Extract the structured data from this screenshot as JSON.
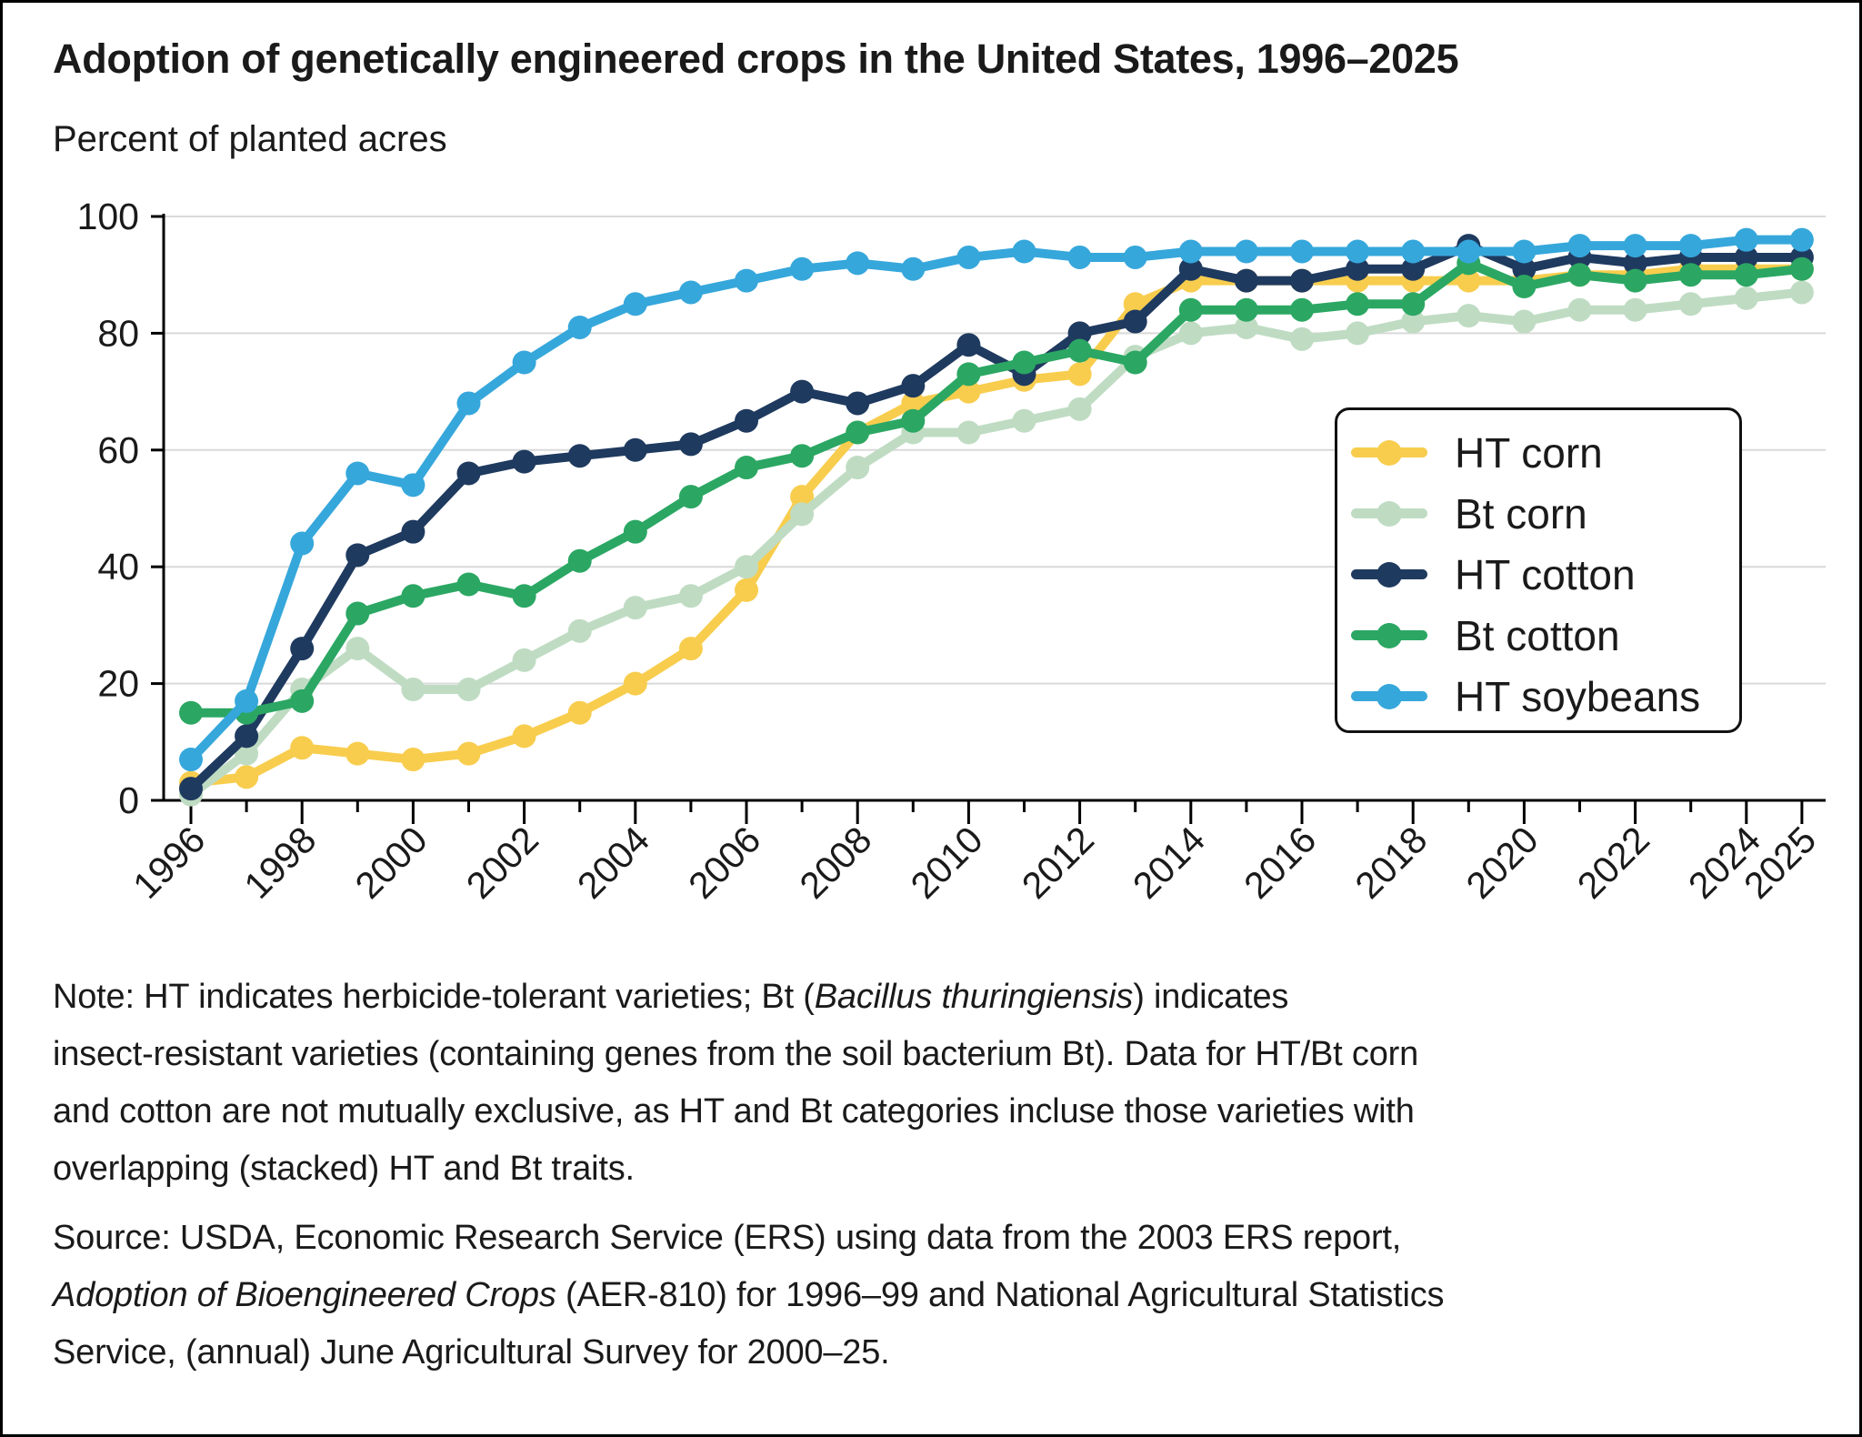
{
  "chart_data": {
    "type": "line",
    "title": "Adoption of genetically engineered crops in the United States, 1996–2025",
    "ylabel": "Percent of planted acres",
    "xlabel": "",
    "x": [
      1996,
      1997,
      1998,
      1999,
      2000,
      2001,
      2002,
      2003,
      2004,
      2005,
      2006,
      2007,
      2008,
      2009,
      2010,
      2011,
      2012,
      2013,
      2014,
      2015,
      2016,
      2017,
      2018,
      2019,
      2020,
      2021,
      2022,
      2023,
      2024,
      2025
    ],
    "xtick_labeled_years": [
      1996,
      1998,
      2000,
      2002,
      2004,
      2006,
      2008,
      2010,
      2012,
      2014,
      2016,
      2018,
      2020,
      2022,
      2024,
      2025
    ],
    "ylim": [
      0,
      100
    ],
    "yticks": [
      0,
      20,
      40,
      60,
      80,
      100
    ],
    "grid": true,
    "legend_position": "inside-right",
    "series": [
      {
        "name": "HT corn",
        "color": "#f8cd4e",
        "values": [
          3,
          4,
          9,
          8,
          7,
          8,
          11,
          15,
          20,
          26,
          36,
          52,
          63,
          68,
          70,
          72,
          73,
          85,
          89,
          89,
          89,
          89,
          89,
          89,
          89,
          90,
          90,
          91,
          91,
          91
        ]
      },
      {
        "name": "Bt corn",
        "color": "#bfdcc3",
        "values": [
          1,
          8,
          19,
          26,
          19,
          19,
          24,
          29,
          33,
          35,
          40,
          49,
          57,
          63,
          63,
          65,
          67,
          76,
          80,
          81,
          79,
          80,
          82,
          83,
          82,
          84,
          84,
          85,
          86,
          87
        ]
      },
      {
        "name": "HT cotton",
        "color": "#1f3a5f",
        "values": [
          2,
          11,
          26,
          42,
          46,
          56,
          58,
          59,
          60,
          61,
          65,
          70,
          68,
          71,
          78,
          73,
          80,
          82,
          91,
          89,
          89,
          91,
          91,
          95,
          91,
          93,
          92,
          93,
          93,
          93
        ]
      },
      {
        "name": "Bt cotton",
        "color": "#2ba763",
        "values": [
          15,
          15,
          17,
          32,
          35,
          37,
          35,
          41,
          46,
          52,
          57,
          59,
          63,
          65,
          73,
          75,
          77,
          75,
          84,
          84,
          84,
          85,
          85,
          92,
          88,
          90,
          89,
          90,
          90,
          91
        ]
      },
      {
        "name": "HT soybeans",
        "color": "#36a7db",
        "values": [
          7,
          17,
          44,
          56,
          54,
          68,
          75,
          81,
          85,
          87,
          89,
          91,
          92,
          91,
          93,
          94,
          93,
          93,
          94,
          94,
          94,
          94,
          94,
          94,
          94,
          95,
          95,
          95,
          96,
          96
        ]
      }
    ]
  },
  "note": {
    "lines": [
      [
        {
          "t": "Note: HT indicates herbicide-tolerant varieties; Bt ("
        },
        {
          "t": "Bacillus thuringiensis",
          "i": true
        },
        {
          "t": ") indicates"
        }
      ],
      [
        {
          "t": "insect-resistant varieties (containing genes from the soil bacterium Bt). Data for HT/Bt corn"
        }
      ],
      [
        {
          "t": "and cotton are not mutually exclusive, as HT and Bt categories incluse those varieties with"
        }
      ],
      [
        {
          "t": "overlapping (stacked) HT and Bt traits."
        }
      ]
    ]
  },
  "source": {
    "lines": [
      [
        {
          "t": "Source: USDA, Economic Research Service (ERS) using data from the 2003 ERS report,"
        }
      ],
      [
        {
          "t": "Adoption of Bioengineered Crops",
          "i": true
        },
        {
          "t": " (AER-810) for 1996–99 and National Agricultural Statistics"
        }
      ],
      [
        {
          "t": "Service, (annual) June Agricultural Survey for 2000–25."
        }
      ]
    ]
  },
  "colors": {
    "grid": "#d9d9d9",
    "axis": "#000000",
    "text": "#1a1a1a"
  }
}
